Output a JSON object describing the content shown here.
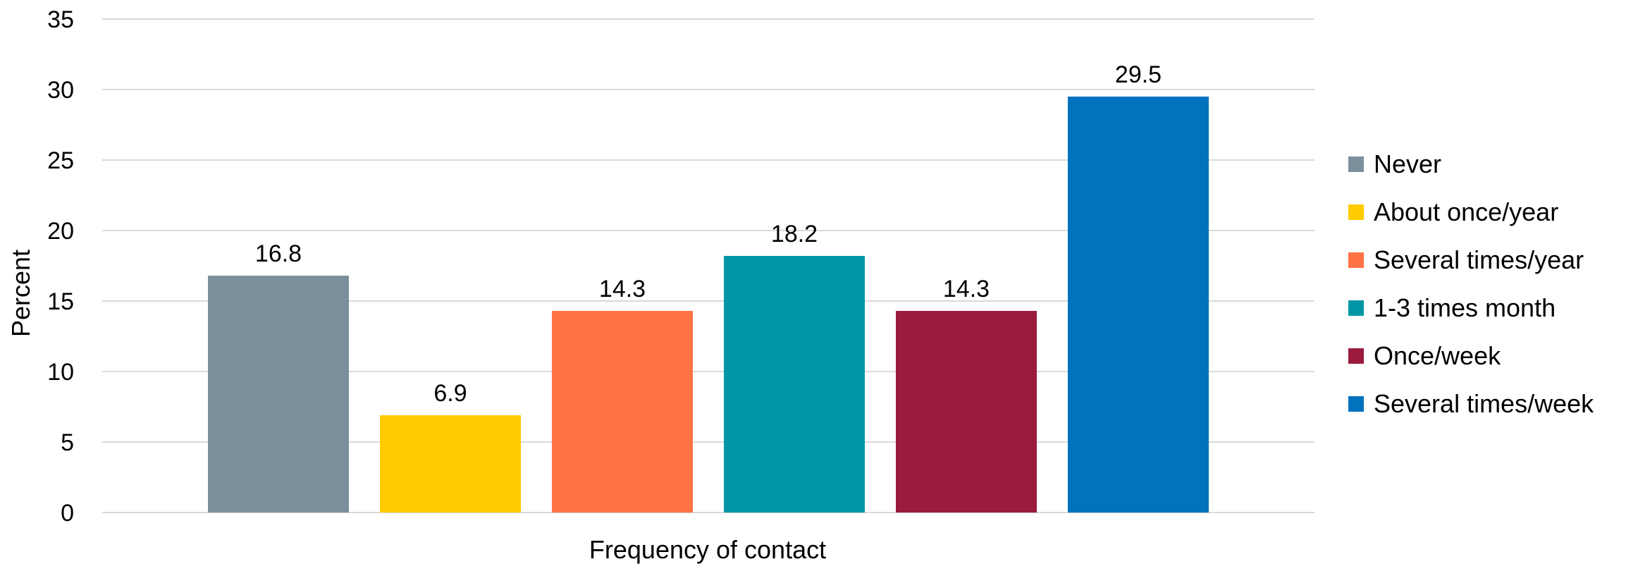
{
  "chart_data": {
    "type": "bar",
    "title": "",
    "xlabel": "Frequency of contact",
    "ylabel": "Percent",
    "ylim": [
      0,
      35
    ],
    "yticks": [
      0,
      5,
      10,
      15,
      20,
      25,
      30,
      35
    ],
    "grid": true,
    "legend_position": "right",
    "categories": [
      "Never",
      "About once/year",
      "Several times/year",
      "1-3 times month",
      "Once/week",
      "Several times/week"
    ],
    "values": [
      16.8,
      6.9,
      14.3,
      18.2,
      14.3,
      29.5
    ],
    "data_labels": [
      "16.8",
      "6.9",
      "14.3",
      "18.2",
      "14.3",
      "29.5"
    ],
    "colors": [
      "#7a909c",
      "#ffcc00",
      "#ff7345",
      "#0096a8",
      "#9b1b3c",
      "#0072be"
    ]
  }
}
